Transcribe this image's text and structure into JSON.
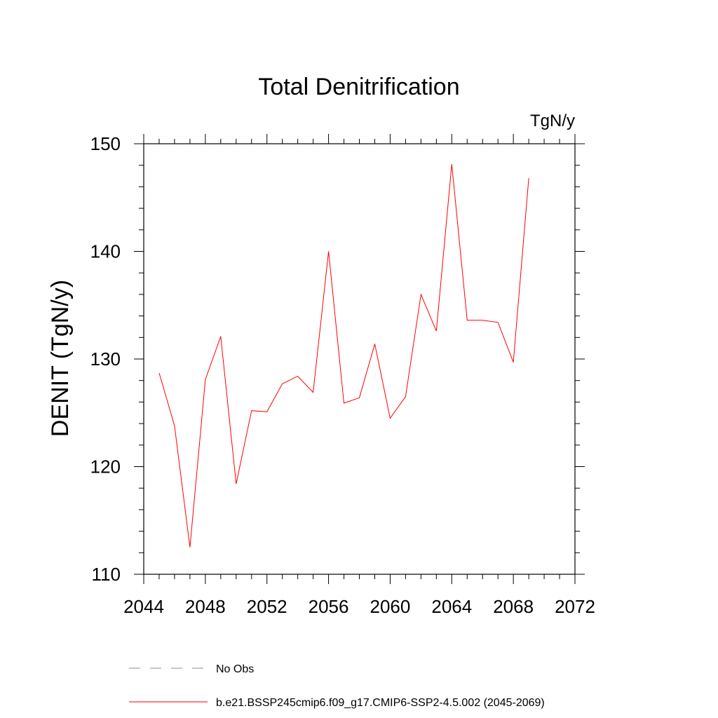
{
  "chart_data": {
    "type": "line",
    "title": "Total Denitrification",
    "units_label": "TgN/y",
    "ylabel": "DENIT  (TgN/y)",
    "xlabel": "",
    "xlim": [
      2044,
      2072
    ],
    "ylim": [
      110,
      150
    ],
    "x_ticks": [
      2044,
      2048,
      2052,
      2056,
      2060,
      2064,
      2068,
      2072
    ],
    "y_ticks": [
      110,
      120,
      130,
      140,
      150
    ],
    "grid": false,
    "legend_placement": "bottom",
    "series": [
      {
        "name": "b.e21.BSSP245cmip6.f09_g17.CMIP6-SSP2-4.5.002 (2045-2069)",
        "color": "#ff0000",
        "style": "solid",
        "x": [
          2045,
          2046,
          2047,
          2048,
          2049,
          2050,
          2051,
          2052,
          2053,
          2054,
          2055,
          2056,
          2057,
          2058,
          2059,
          2060,
          2061,
          2062,
          2063,
          2064,
          2065,
          2066,
          2067,
          2068,
          2069
        ],
        "y": [
          128.7,
          123.8,
          112.5,
          128.1,
          132.1,
          118.4,
          125.2,
          125.1,
          127.7,
          128.4,
          126.9,
          140.0,
          125.9,
          126.4,
          131.4,
          124.5,
          126.5,
          136.0,
          132.6,
          148.1,
          133.6,
          133.6,
          133.4,
          129.7,
          146.8
        ]
      },
      {
        "name": "No Obs",
        "color": "#8a86c8",
        "style": "dashed",
        "x": [],
        "y": []
      }
    ]
  }
}
